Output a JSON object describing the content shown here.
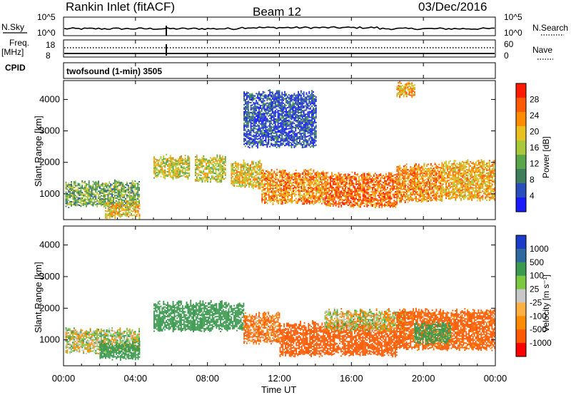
{
  "header": {
    "site": "Rankin Inlet (fitACF)",
    "beam": "Beam 12",
    "date": "03/Dec/2016"
  },
  "summary_panels": {
    "nsky_label": "N.Sky",
    "nsearch_label": "N.Search",
    "nsky_ticks": [
      "10^5",
      "10^0"
    ],
    "nsearch_ticks": [
      "10^5",
      "10^0"
    ],
    "freq_label": "Freq.",
    "freq_unit": "[MHz]",
    "freq_ticks": [
      "18",
      "8"
    ],
    "nave_label": "Nave",
    "nave_ticks": [
      "60",
      "0"
    ],
    "cpid_label": "CPID",
    "cpid_text": "twofsound (1-min) 3505"
  },
  "colors": {
    "power": [
      "#1a1aff",
      "#2a4dbd",
      "#3c7f5a",
      "#5aa648",
      "#a7c93a",
      "#e8c020",
      "#ff8c00",
      "#ff5a00",
      "#ff1a00"
    ],
    "velocity": [
      "#ff0000",
      "#ff5a00",
      "#ff8c00",
      "#ffb040",
      "#c8c8c8",
      "#7cc840",
      "#3c9a50",
      "#2e6aa0",
      "#1a3cc8"
    ]
  },
  "chart_data": [
    {
      "type": "heatmap",
      "name": "power",
      "ylabel": "Slant Range [km]",
      "xlabel": "",
      "xlim": [
        0,
        24
      ],
      "ylim": [
        180,
        4600
      ],
      "x_ticks": [
        "00:00",
        "04:00",
        "08:00",
        "12:00",
        "16:00",
        "20:00",
        "00:00"
      ],
      "y_ticks": [
        1000,
        2000,
        3000,
        4000
      ],
      "colorbar_title": "Power [dB]",
      "colorbar_ticks": [
        4,
        8,
        12,
        16,
        20,
        24,
        28
      ],
      "colorbar_range": [
        0,
        30
      ],
      "regions": [
        {
          "t": [
            0.1,
            4.2
          ],
          "r": [
            600,
            1350
          ],
          "v": 12
        },
        {
          "t": [
            2.3,
            4.2
          ],
          "r": [
            250,
            700
          ],
          "v": 18
        },
        {
          "t": [
            5.0,
            7.0
          ],
          "r": [
            1500,
            2150
          ],
          "v": 16
        },
        {
          "t": [
            7.3,
            9.0
          ],
          "r": [
            1400,
            2150
          ],
          "v": 16
        },
        {
          "t": [
            9.3,
            11.0
          ],
          "r": [
            1200,
            2000
          ],
          "v": 18
        },
        {
          "t": [
            11.0,
            14.5
          ],
          "r": [
            700,
            1700
          ],
          "v": 22
        },
        {
          "t": [
            14.5,
            18.5
          ],
          "r": [
            600,
            1600
          ],
          "v": 24
        },
        {
          "t": [
            18.5,
            21.0
          ],
          "r": [
            750,
            1900
          ],
          "v": 22
        },
        {
          "t": [
            21.0,
            24.0
          ],
          "r": [
            800,
            2000
          ],
          "v": 20
        },
        {
          "t": [
            10.0,
            14.0
          ],
          "r": [
            2500,
            4200
          ],
          "v": 5
        },
        {
          "t": [
            18.5,
            19.5
          ],
          "r": [
            4100,
            4500
          ],
          "v": 20
        }
      ]
    },
    {
      "type": "heatmap",
      "name": "velocity",
      "ylabel": "Slant Range [km]",
      "xlabel": "Time UT",
      "xlim": [
        0,
        24
      ],
      "ylim": [
        180,
        4600
      ],
      "x_ticks": [
        "00:00",
        "04:00",
        "08:00",
        "12:00",
        "16:00",
        "20:00",
        "00:00"
      ],
      "y_ticks": [
        1000,
        2000,
        3000,
        4000
      ],
      "colorbar_title": "Velocity [m s⁻¹]",
      "colorbar_ticks": [
        1000,
        500,
        100,
        25,
        -25,
        -100,
        -500,
        -1000
      ],
      "regions": [
        {
          "t": [
            0.1,
            4.2
          ],
          "r": [
            600,
            1300
          ],
          "v": 25
        },
        {
          "t": [
            2.0,
            4.2
          ],
          "r": [
            400,
            900
          ],
          "v": 300
        },
        {
          "t": [
            5.0,
            10.0
          ],
          "r": [
            1300,
            2150
          ],
          "v": 300
        },
        {
          "t": [
            10.0,
            12.0
          ],
          "r": [
            900,
            1800
          ],
          "v": -100
        },
        {
          "t": [
            12.0,
            18.5
          ],
          "r": [
            500,
            1500
          ],
          "v": -300
        },
        {
          "t": [
            14.5,
            19.0
          ],
          "r": [
            1300,
            1900
          ],
          "v": 0
        },
        {
          "t": [
            18.5,
            24.0
          ],
          "r": [
            700,
            1900
          ],
          "v": -200
        },
        {
          "t": [
            19.5,
            21.5
          ],
          "r": [
            900,
            1500
          ],
          "v": 200
        }
      ]
    }
  ]
}
